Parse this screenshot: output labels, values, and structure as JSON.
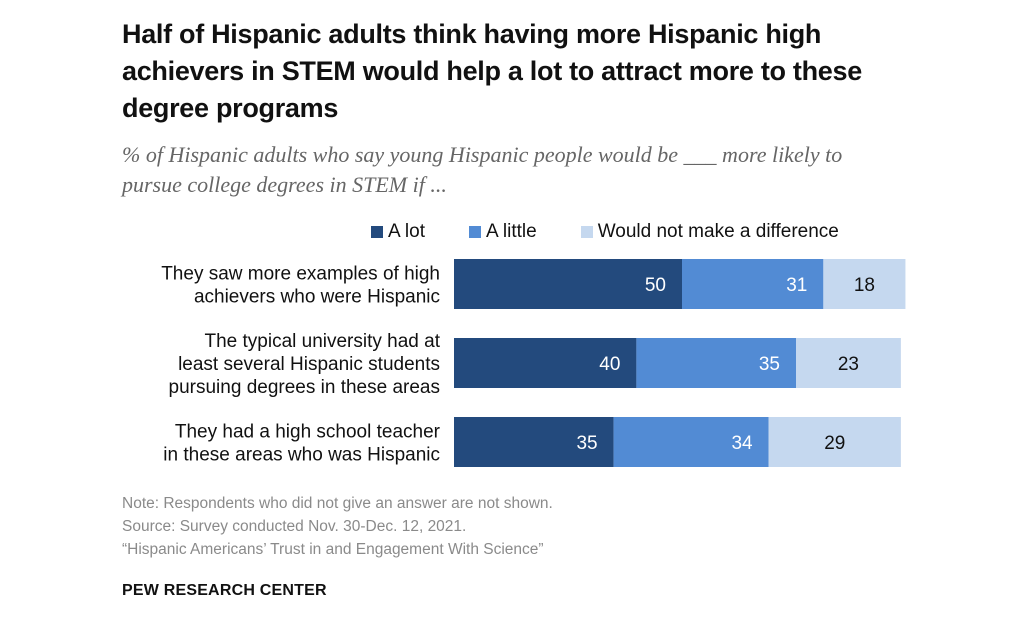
{
  "chart_data": {
    "type": "bar",
    "orientation": "horizontal",
    "stacked": true,
    "title": "Half of Hispanic adults think having more Hispanic high achievers in STEM would help a lot to attract more to these degree programs",
    "subtitle": "% of Hispanic adults who say young Hispanic people would be ___ more likely to pursue college degrees in STEM if ...",
    "categories": [
      [
        "They saw more examples of high",
        "achievers who were Hispanic"
      ],
      [
        "The typical university had at",
        "least several Hispanic students",
        "pursuing degrees in these areas"
      ],
      [
        "They had a high school teacher",
        "in these areas who was Hispanic"
      ]
    ],
    "series": [
      {
        "name": "A lot",
        "color": "#234a7d",
        "label_color": "#ffffff",
        "values": [
          50,
          40,
          35
        ]
      },
      {
        "name": "A little",
        "color": "#528bd4",
        "label_color": "#ffffff",
        "values": [
          31,
          35,
          34
        ]
      },
      {
        "name": "Would not make a difference",
        "color": "#c5d8ef",
        "label_color": "#111111",
        "values": [
          18,
          23,
          29
        ]
      }
    ],
    "xlim": [
      0,
      100
    ],
    "grid": false,
    "axes_visible": false,
    "legend": "top",
    "xlabel": "",
    "ylabel": ""
  },
  "header": {
    "title": "Half of Hispanic adults think having more Hispanic high achievers in STEM would help a lot to attract more to these degree programs",
    "subtitle": "% of Hispanic adults who say young Hispanic people would be ___ more likely to pursue college degrees in STEM if ..."
  },
  "footer": {
    "note": "Note: Respondents who did not give an answer are not shown.",
    "source": "Source: Survey conducted Nov. 30-Dec. 12, 2021.",
    "report": "“Hispanic Americans’ Trust in and Engagement With Science”",
    "brand": "PEW RESEARCH CENTER"
  }
}
